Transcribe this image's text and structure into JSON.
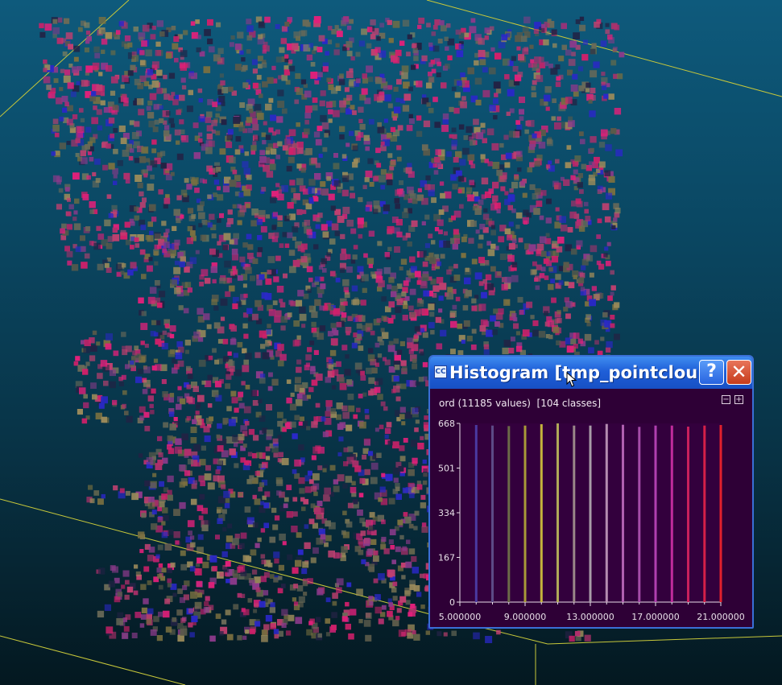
{
  "window": {
    "title": "Histogram [tmp_pointclou...",
    "app_icon": "CC",
    "help_label": "?",
    "close_label": "✕",
    "info": "ord (11185 values)  [104 classes]",
    "collapse_label": "−",
    "expand_label": "+"
  },
  "colors": {
    "window_bg": "#2e0036",
    "plot_bg": "#33003d",
    "titlebar": "#1f5fd8"
  },
  "chart_data": {
    "type": "bar",
    "title": "",
    "xlabel": "",
    "ylabel": "",
    "ylim": [
      0,
      668
    ],
    "xlim": [
      5,
      21
    ],
    "yticks": [
      "0",
      "167",
      "334",
      "501",
      "668"
    ],
    "xticks": [
      "5.000000",
      "9.000000",
      "13.000000",
      "17.000000",
      "21.000000"
    ],
    "bars": [
      {
        "x": 6,
        "value": 662,
        "color": "#4a3aa0"
      },
      {
        "x": 7,
        "value": 660,
        "color": "#5c4a86"
      },
      {
        "x": 8,
        "value": 658,
        "color": "#6c6a48"
      },
      {
        "x": 9,
        "value": 660,
        "color": "#a89a38"
      },
      {
        "x": 10,
        "value": 665,
        "color": "#c4b43c"
      },
      {
        "x": 11,
        "value": 668,
        "color": "#b0a858"
      },
      {
        "x": 12,
        "value": 660,
        "color": "#9a8888"
      },
      {
        "x": 13,
        "value": 660,
        "color": "#a89ca8"
      },
      {
        "x": 14,
        "value": 666,
        "color": "#b48cb0"
      },
      {
        "x": 15,
        "value": 663,
        "color": "#b060b0"
      },
      {
        "x": 16,
        "value": 655,
        "color": "#a44ca8"
      },
      {
        "x": 17,
        "value": 660,
        "color": "#b040b0"
      },
      {
        "x": 18,
        "value": 660,
        "color": "#c02c9c"
      },
      {
        "x": 19,
        "value": 656,
        "color": "#c8205c"
      },
      {
        "x": 20,
        "value": 660,
        "color": "#d42048"
      },
      {
        "x": 21,
        "value": 662,
        "color": "#e0202c"
      }
    ]
  }
}
